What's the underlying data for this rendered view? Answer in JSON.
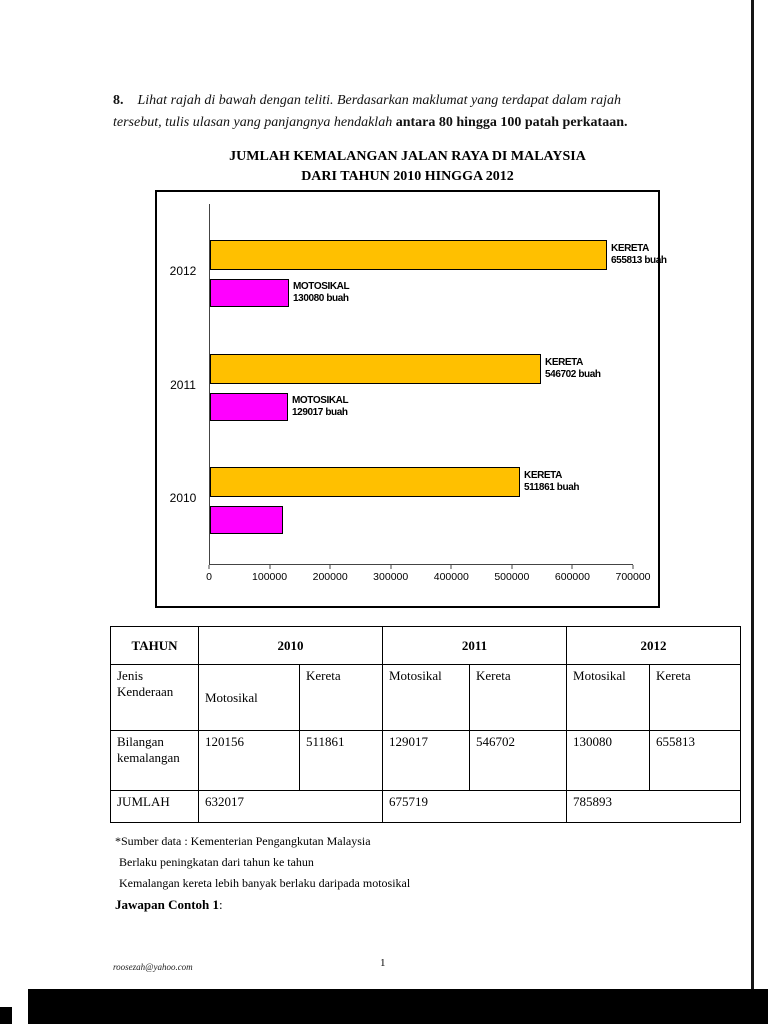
{
  "question": {
    "number": "8.",
    "text_italic": "Lihat rajah di bawah dengan teliti. Berdasarkan maklumat yang terdapat dalam rajah tersebut, tulis ulasan yang panjangnya hendaklah ",
    "text_bold": "antara 80 hingga 100 patah  perkataan",
    "text_tail": "."
  },
  "chart": {
    "title_line1": "JUMLAH KEMALANGAN JALAN RAYA DI MALAYSIA",
    "title_line2": "DARI TAHUN 2010 HINGGA 2012"
  },
  "chart_data": {
    "type": "bar",
    "orientation": "horizontal",
    "title": "JUMLAH KEMALANGAN JALAN RAYA DI MALAYSIA DARI TAHUN 2010 HINGGA 2012",
    "categories": [
      "2012",
      "2011",
      "2010"
    ],
    "series": [
      {
        "name": "KERETA",
        "color": "#FFC000",
        "values": [
          655813,
          546702,
          511861
        ],
        "bar_labels": [
          [
            "KERETA",
            "655813 buah"
          ],
          [
            "KERETA",
            "546702 buah"
          ],
          [
            "KERETA",
            "511861 buah"
          ]
        ]
      },
      {
        "name": "MOTOSIKAL",
        "color": "#FF00FF",
        "values": [
          130080,
          129017,
          120156
        ],
        "bar_labels": [
          [
            "MOTOSIKAL",
            "130080 buah"
          ],
          [
            "MOTOSIKAL",
            "129017 buah"
          ],
          null
        ]
      }
    ],
    "xlim": [
      0,
      700000
    ],
    "x_ticks": [
      "0",
      "100000",
      "200000",
      "300000",
      "400000",
      "500000",
      "600000",
      "700000"
    ],
    "grid": false,
    "legend": "none"
  },
  "table": {
    "header": {
      "tahun": "TAHUN",
      "y2010": "2010",
      "y2011": "2011",
      "y2012": "2012"
    },
    "jenis": {
      "label_line1": "Jenis",
      "label_line2": "Kenderaan",
      "cells": [
        "Motosikal",
        "Kereta",
        "Motosikal",
        "Kereta",
        "Motosikal",
        "Kereta"
      ]
    },
    "bilangan": {
      "label_line1": "Bilangan",
      "label_line2": "kemalangan",
      "cells": [
        "120156",
        "511861",
        "129017",
        "546702",
        "130080",
        "655813"
      ]
    },
    "jumlah": {
      "label": "JUMLAH",
      "cells": [
        "632017",
        "675719",
        "785893"
      ]
    }
  },
  "notes": {
    "source": "*Sumber data : Kementerian Pengangkutan Malaysia",
    "point1": "Berlaku peningkatan dari tahun ke tahun",
    "point2": "Kemalangan kereta lebih banyak berlaku daripada motosikal",
    "answer_bold": "Jawapan Contoh 1",
    "answer_tail": ":"
  },
  "footer": {
    "email": "roosezah@yahoo.com",
    "page_number": "1"
  }
}
